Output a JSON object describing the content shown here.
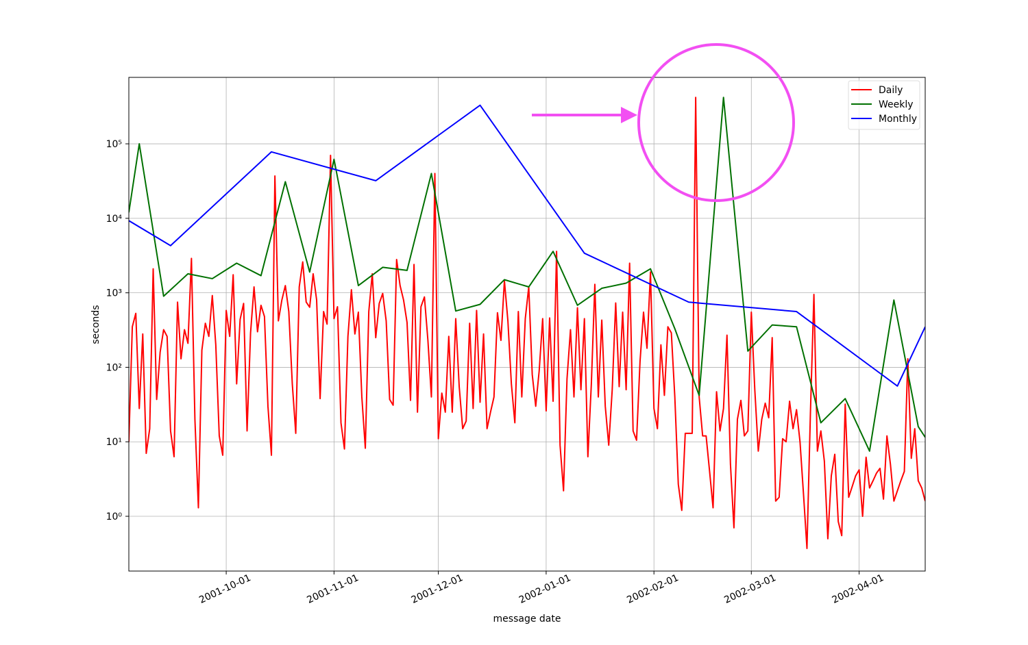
{
  "chart_data": {
    "type": "line",
    "xlabel": "message date",
    "ylabel": "seconds",
    "log_y": true,
    "grid": true,
    "legend": "upper right",
    "xlim": [
      "2001-09-03",
      "2002-04-20"
    ],
    "xticks": [
      "2001-10-01",
      "2001-11-01",
      "2001-12-01",
      "2002-01-01",
      "2002-02-01",
      "2002-03-01",
      "2002-04-01"
    ],
    "ylim": [
      0.184,
      780000
    ],
    "yticks": [
      {
        "value": 1,
        "label": "10⁰"
      },
      {
        "value": 10,
        "label": "10¹"
      },
      {
        "value": 100,
        "label": "10²"
      },
      {
        "value": 1000,
        "label": "10³"
      },
      {
        "value": 10000,
        "label": "10⁴"
      },
      {
        "value": 100000,
        "label": "10⁵"
      }
    ],
    "series": [
      {
        "name": "Daily",
        "color": "#ff0000",
        "x": [
          "2001-09-03",
          "2001-09-04",
          "2001-09-05",
          "2001-09-06",
          "2001-09-07",
          "2001-09-08",
          "2001-09-09",
          "2001-09-10",
          "2001-09-11",
          "2001-09-12",
          "2001-09-13",
          "2001-09-14",
          "2001-09-15",
          "2001-09-16",
          "2001-09-17",
          "2001-09-18",
          "2001-09-19",
          "2001-09-20",
          "2001-09-21",
          "2001-09-22",
          "2001-09-23",
          "2001-09-24",
          "2001-09-25",
          "2001-09-26",
          "2001-09-27",
          "2001-09-28",
          "2001-09-29",
          "2001-09-30",
          "2001-10-01",
          "2001-10-02",
          "2001-10-03",
          "2001-10-04",
          "2001-10-05",
          "2001-10-06",
          "2001-10-07",
          "2001-10-08",
          "2001-10-09",
          "2001-10-10",
          "2001-10-11",
          "2001-10-12",
          "2001-10-13",
          "2001-10-14",
          "2001-10-15",
          "2001-10-16",
          "2001-10-17",
          "2001-10-18",
          "2001-10-19",
          "2001-10-20",
          "2001-10-21",
          "2001-10-22",
          "2001-10-23",
          "2001-10-24",
          "2001-10-25",
          "2001-10-26",
          "2001-10-27",
          "2001-10-28",
          "2001-10-29",
          "2001-10-30",
          "2001-10-31",
          "2001-11-01",
          "2001-11-02",
          "2001-11-03",
          "2001-11-04",
          "2001-11-05",
          "2001-11-06",
          "2001-11-07",
          "2001-11-08",
          "2001-11-09",
          "2001-11-10",
          "2001-11-11",
          "2001-11-12",
          "2001-11-13",
          "2001-11-14",
          "2001-11-15",
          "2001-11-16",
          "2001-11-17",
          "2001-11-18",
          "2001-11-19",
          "2001-11-20",
          "2001-11-21",
          "2001-11-22",
          "2001-11-23",
          "2001-11-24",
          "2001-11-25",
          "2001-11-26",
          "2001-11-27",
          "2001-11-28",
          "2001-11-29",
          "2001-11-30",
          "2001-12-01",
          "2001-12-02",
          "2001-12-03",
          "2001-12-04",
          "2001-12-05",
          "2001-12-06",
          "2001-12-07",
          "2001-12-08",
          "2001-12-09",
          "2001-12-10",
          "2001-12-11",
          "2001-12-12",
          "2001-12-13",
          "2001-12-14",
          "2001-12-15",
          "2001-12-16",
          "2001-12-17",
          "2001-12-18",
          "2001-12-19",
          "2001-12-20",
          "2001-12-21",
          "2001-12-22",
          "2001-12-23",
          "2001-12-24",
          "2001-12-25",
          "2001-12-26",
          "2001-12-27",
          "2001-12-28",
          "2001-12-29",
          "2001-12-30",
          "2001-12-31",
          "2002-01-01",
          "2002-01-02",
          "2002-01-03",
          "2002-01-04",
          "2002-01-05",
          "2002-01-06",
          "2002-01-07",
          "2002-01-08",
          "2002-01-09",
          "2002-01-10",
          "2002-01-11",
          "2002-01-12",
          "2002-01-13",
          "2002-01-14",
          "2002-01-15",
          "2002-01-16",
          "2002-01-17",
          "2002-01-18",
          "2002-01-19",
          "2002-01-20",
          "2002-01-21",
          "2002-01-22",
          "2002-01-23",
          "2002-01-24",
          "2002-01-25",
          "2002-01-26",
          "2002-01-27",
          "2002-01-28",
          "2002-01-29",
          "2002-01-30",
          "2002-01-31",
          "2002-02-01",
          "2002-02-02",
          "2002-02-03",
          "2002-02-04",
          "2002-02-05",
          "2002-02-06",
          "2002-02-07",
          "2002-02-08",
          "2002-02-09",
          "2002-02-10",
          "2002-02-11",
          "2002-02-12",
          "2002-02-13",
          "2002-02-14",
          "2002-02-15",
          "2002-02-16",
          "2002-02-17",
          "2002-02-18",
          "2002-02-19",
          "2002-02-20",
          "2002-02-21",
          "2002-02-22",
          "2002-02-23",
          "2002-02-24",
          "2002-02-25",
          "2002-02-26",
          "2002-02-27",
          "2002-02-28",
          "2002-03-01",
          "2002-03-02",
          "2002-03-03",
          "2002-03-04",
          "2002-03-05",
          "2002-03-06",
          "2002-03-07",
          "2002-03-08",
          "2002-03-09",
          "2002-03-10",
          "2002-03-11",
          "2002-03-12",
          "2002-03-13",
          "2002-03-14",
          "2002-03-15",
          "2002-03-16",
          "2002-03-17",
          "2002-03-18",
          "2002-03-19",
          "2002-03-20",
          "2002-03-21",
          "2002-03-22",
          "2002-03-23",
          "2002-03-24",
          "2002-03-25",
          "2002-03-26",
          "2002-03-27",
          "2002-03-28",
          "2002-03-29",
          "2002-03-30",
          "2002-03-31",
          "2002-04-01",
          "2002-04-02",
          "2002-04-03",
          "2002-04-04",
          "2002-04-05",
          "2002-04-06",
          "2002-04-07",
          "2002-04-08",
          "2002-04-09",
          "2002-04-10",
          "2002-04-11",
          "2002-04-12",
          "2002-04-13",
          "2002-04-14",
          "2002-04-15",
          "2002-04-16",
          "2002-04-17",
          "2002-04-18",
          "2002-04-19",
          "2002-04-20"
        ],
        "values": [
          10,
          350,
          530,
          28,
          280,
          7,
          15,
          2100,
          37,
          160,
          320,
          260,
          14,
          6.3,
          750,
          130,
          320,
          210,
          2900,
          20,
          1.3,
          170,
          390,
          260,
          920,
          200,
          12,
          6.6,
          580,
          260,
          1750,
          60,
          440,
          720,
          14,
          290,
          1200,
          300,
          680,
          480,
          30,
          6.6,
          37000,
          420,
          800,
          1250,
          560,
          60,
          13,
          1200,
          2600,
          750,
          640,
          1800,
          800,
          38,
          560,
          380,
          70000,
          450,
          650,
          18,
          8,
          260,
          1100,
          280,
          550,
          40,
          8.2,
          560,
          1800,
          250,
          720,
          980,
          420,
          37,
          31,
          2800,
          1250,
          800,
          400,
          36,
          2400,
          25,
          650,
          880,
          230,
          40,
          40000,
          11,
          45,
          25,
          260,
          25,
          450,
          55,
          15,
          19,
          390,
          28,
          580,
          34,
          280,
          15,
          25,
          40,
          540,
          230,
          1450,
          420,
          60,
          18,
          560,
          40,
          450,
          1200,
          80,
          30,
          90,
          450,
          26,
          460,
          35,
          3600,
          9,
          2.2,
          70,
          320,
          40,
          630,
          50,
          450,
          6.3,
          60,
          1300,
          40,
          430,
          30,
          9,
          50,
          730,
          55,
          550,
          50,
          2500,
          14,
          10.5,
          120,
          550,
          180,
          1900,
          28,
          15,
          200,
          42,
          350,
          290,
          40,
          2.7,
          1.2,
          13,
          13,
          13,
          420000,
          40,
          12,
          12,
          4,
          1.3,
          47,
          14,
          28,
          270,
          5,
          0.7,
          20,
          36,
          12,
          14,
          550,
          50,
          7.5,
          20,
          33,
          21,
          250,
          1.6,
          1.8,
          11,
          10,
          35,
          15,
          27,
          10,
          2,
          0.37,
          25,
          950,
          7.5,
          14,
          5.5,
          0.5,
          3.5,
          6.8,
          0.85,
          0.55,
          32,
          1.8,
          2.5,
          3.5,
          4.2,
          1,
          6.2,
          2.4,
          3,
          3.8,
          4.4,
          1.7,
          12,
          5,
          1.6,
          2.2,
          3,
          4,
          130,
          6,
          15,
          3,
          2.4,
          1.6
        ]
      },
      {
        "name": "Weekly",
        "color": "#007000",
        "x": [
          "2001-09-03",
          "2001-09-06",
          "2001-09-13",
          "2001-09-20",
          "2001-09-27",
          "2001-10-04",
          "2001-10-11",
          "2001-10-18",
          "2001-10-25",
          "2001-11-01",
          "2001-11-08",
          "2001-11-15",
          "2001-11-22",
          "2001-11-29",
          "2001-12-06",
          "2001-12-13",
          "2001-12-20",
          "2001-12-27",
          "2002-01-03",
          "2002-01-10",
          "2002-01-17",
          "2002-01-24",
          "2002-01-31",
          "2002-02-07",
          "2002-02-14",
          "2002-02-21",
          "2002-02-28",
          "2002-03-07",
          "2002-03-14",
          "2002-03-21",
          "2002-03-28",
          "2002-04-04",
          "2002-04-11",
          "2002-04-18",
          "2002-04-20"
        ],
        "values": [
          12000,
          100000,
          900,
          1800,
          1550,
          2500,
          1700,
          31000,
          1900,
          62000,
          1250,
          2200,
          2000,
          40000,
          570,
          700,
          1500,
          1200,
          3600,
          680,
          1150,
          1350,
          2100,
          330,
          42,
          420000,
          165,
          370,
          350,
          18,
          38,
          7.5,
          800,
          16,
          11.5
        ]
      },
      {
        "name": "Monthly",
        "color": "#0000ff",
        "x": [
          "2001-09-03",
          "2001-09-15",
          "2001-10-14",
          "2001-11-13",
          "2001-12-13",
          "2002-01-12",
          "2002-02-11",
          "2002-03-14",
          "2002-04-12",
          "2002-04-20"
        ],
        "values": [
          9300,
          4300,
          78000,
          32000,
          330000,
          3400,
          750,
          560,
          56,
          350
        ]
      }
    ]
  }
}
